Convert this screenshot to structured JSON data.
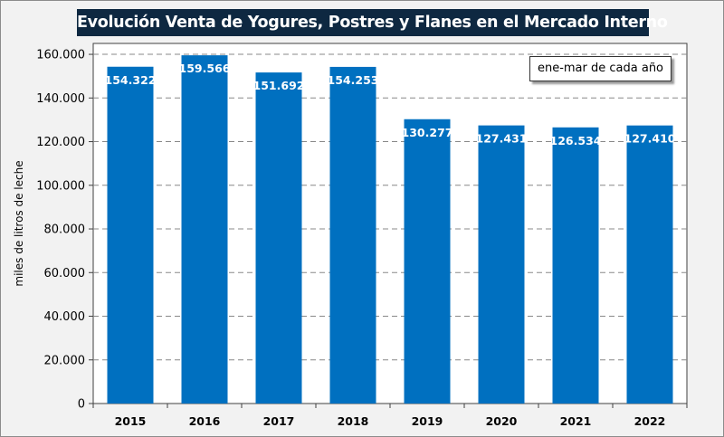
{
  "chart_data": {
    "type": "bar",
    "title": "Evolución Venta de Yogures, Postres y Flanes en el Mercado Interno",
    "annotation": "ene-mar de cada año",
    "xlabel": "",
    "ylabel": "miles de litros de leche",
    "categories": [
      "2015",
      "2016",
      "2017",
      "2018",
      "2019",
      "2020",
      "2021",
      "2022"
    ],
    "values": [
      154322,
      159566,
      151692,
      154253,
      130277,
      127431,
      126534,
      127410
    ],
    "data_labels": [
      "154.322",
      "159.566",
      "151.692",
      "154.253",
      "130.277",
      "127.431",
      "126.534",
      "127.410"
    ],
    "yticks": [
      0,
      20000,
      40000,
      60000,
      80000,
      100000,
      120000,
      140000,
      160000
    ],
    "ytick_labels": [
      "0",
      "20.000",
      "40.000",
      "60.000",
      "80.000",
      "100.000",
      "120.000",
      "140.000",
      "160.000"
    ],
    "ylim": [
      0,
      165000
    ],
    "grid": "horizontal dashed",
    "colors": {
      "bar": "#0070c0",
      "title_bg": "#0e2841",
      "background": "#f2f2f2"
    }
  }
}
